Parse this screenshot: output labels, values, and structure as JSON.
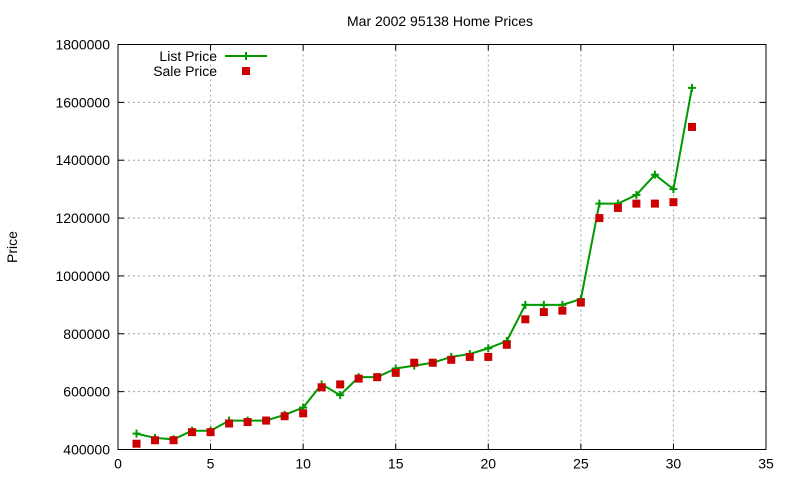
{
  "chart_data": {
    "type": "line",
    "title": "Mar 2002 95138 Home Prices",
    "xlabel": "",
    "ylabel": "Price",
    "xlim": [
      0,
      35
    ],
    "ylim": [
      400000,
      1800000
    ],
    "xticks": [
      0,
      5,
      10,
      15,
      20,
      25,
      30,
      35
    ],
    "yticks": [
      400000,
      600000,
      800000,
      1000000,
      1200000,
      1400000,
      1600000,
      1800000
    ],
    "grid": true,
    "legend_position": "top-left",
    "x": [
      1,
      2,
      3,
      4,
      5,
      6,
      7,
      8,
      9,
      10,
      11,
      12,
      13,
      14,
      15,
      16,
      17,
      18,
      19,
      20,
      21,
      22,
      23,
      24,
      25,
      26,
      27,
      28,
      29,
      30,
      31
    ],
    "series": [
      {
        "name": "List Price",
        "style": "line-with-cross-markers",
        "color": "#009900",
        "values": [
          455000,
          440000,
          435000,
          465000,
          465000,
          500000,
          500000,
          500000,
          520000,
          545000,
          625000,
          588000,
          650000,
          650000,
          680000,
          690000,
          700000,
          720000,
          730000,
          750000,
          775000,
          900000,
          900000,
          900000,
          920000,
          1250000,
          1250000,
          1280000,
          1350000,
          1300000,
          1650000
        ]
      },
      {
        "name": "Sale Price",
        "style": "square-markers",
        "color": "#cc0000",
        "values": [
          420000,
          432000,
          432000,
          460000,
          460000,
          490000,
          495000,
          500000,
          515000,
          525000,
          615000,
          625000,
          645000,
          650000,
          665000,
          700000,
          700000,
          710000,
          720000,
          720000,
          762000,
          850000,
          875000,
          880000,
          908000,
          1200000,
          1235000,
          1250000,
          1250000,
          1255000,
          1515000
        ]
      }
    ]
  }
}
